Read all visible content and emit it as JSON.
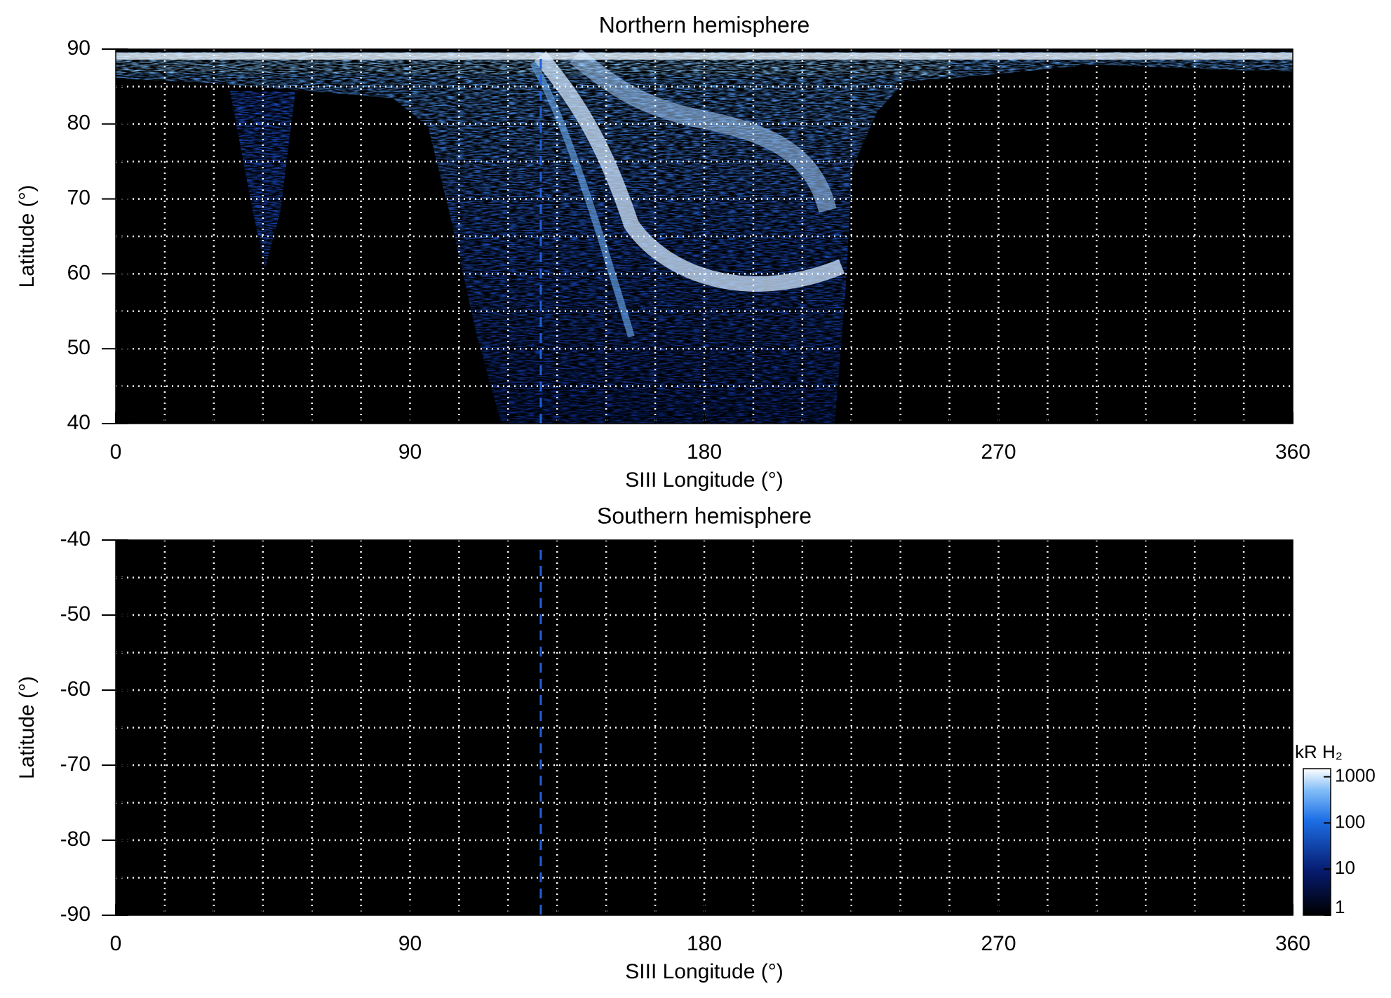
{
  "chart_data": [
    {
      "type": "map",
      "title": "Northern hemisphere",
      "x_label": "SIII Longitude (°)",
      "y_label": "Latitude (°)",
      "xlim": [
        0,
        360
      ],
      "xticks": [
        0,
        90,
        180,
        270,
        360
      ],
      "ylim": [
        40,
        90
      ],
      "yticks": [
        40,
        50,
        60,
        70,
        80,
        90
      ],
      "xgrid": [
        15,
        30,
        45,
        60,
        75,
        90,
        105,
        120,
        135,
        150,
        165,
        180,
        195,
        210,
        225,
        240,
        255,
        270,
        285,
        300,
        315,
        330,
        345
      ],
      "ygrid": [
        45,
        50,
        55,
        60,
        65,
        70,
        75,
        80,
        85
      ],
      "marker_longitude": 130,
      "marker_color": "#2060d8"
    },
    {
      "type": "map",
      "title": "Southern hemisphere",
      "x_label": "SIII Longitude (°)",
      "y_label": "Latitude (°)",
      "xlim": [
        0,
        360
      ],
      "xticks": [
        0,
        90,
        180,
        270,
        360
      ],
      "ylim": [
        -90,
        -40
      ],
      "yticks": [
        -40,
        -50,
        -60,
        -70,
        -80,
        -90
      ],
      "xgrid": [
        15,
        30,
        45,
        60,
        75,
        90,
        105,
        120,
        135,
        150,
        165,
        180,
        195,
        210,
        225,
        240,
        255,
        270,
        285,
        300,
        315,
        330,
        345
      ],
      "ygrid": [
        -45,
        -50,
        -55,
        -60,
        -65,
        -70,
        -75,
        -80,
        -85
      ],
      "marker_longitude": 130,
      "marker_color": "#2060d8",
      "colorbar": {
        "label": "kR H₂",
        "lim": [
          1,
          1500
        ],
        "log": true,
        "ticks": [
          1,
          10,
          100,
          1000
        ]
      }
    }
  ]
}
